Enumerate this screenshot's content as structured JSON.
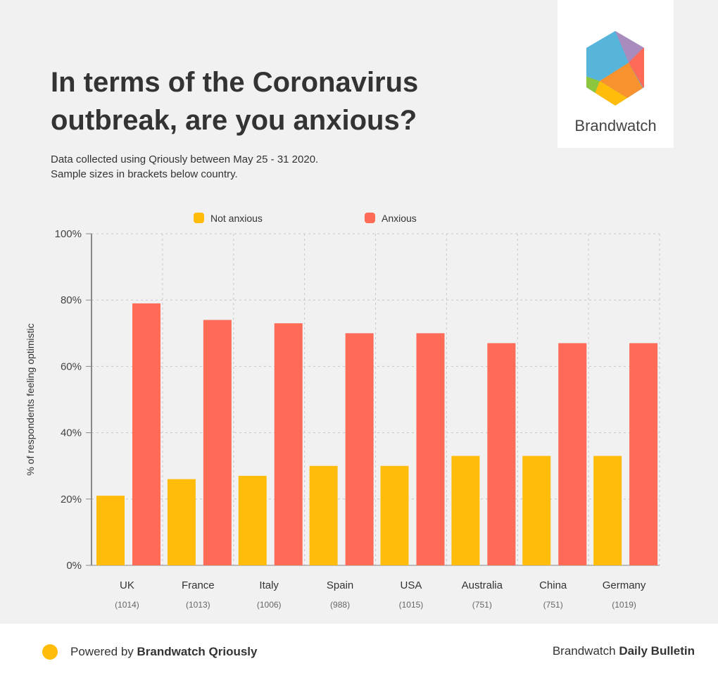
{
  "header": {
    "title_line1": "In terms of the Coronavirus",
    "title_line2": "outbreak, are you anxious?",
    "subtitle_line1": "Data collected using Qriously between May 25 - 31 2020.",
    "subtitle_line2": "Sample sizes in brackets below country.",
    "logo_text": "Brandwatch"
  },
  "footer": {
    "powered_prefix": "Powered by ",
    "powered_brand": "Brandwatch Qriously",
    "bulletin_prefix": "Brandwatch ",
    "bulletin_bold": "Daily Bulletin",
    "accent": "#ffbc0a"
  },
  "chart_data": {
    "type": "bar",
    "title": "In terms of the Coronavirus outbreak, are you anxious?",
    "categories": [
      "UK",
      "France",
      "Italy",
      "Spain",
      "USA",
      "Australia",
      "China",
      "Germany"
    ],
    "sample_sizes": [
      "(1014)",
      "(1013)",
      "(1006)",
      "(988)",
      "(1015)",
      "(751)",
      "(751)",
      "(1019)"
    ],
    "series": [
      {
        "name": "Not anxious",
        "color": "#ffbc0a",
        "values": [
          21,
          26,
          27,
          30,
          30,
          33,
          33,
          33
        ]
      },
      {
        "name": "Anxious",
        "color": "#ff6b57",
        "values": [
          79,
          74,
          73,
          70,
          70,
          67,
          67,
          67
        ]
      }
    ],
    "ylabel": "% of respondents feeling optimistic",
    "ylim": [
      0,
      100
    ],
    "yticks": [
      "0%",
      "20%",
      "40%",
      "60%",
      "80%",
      "100%"
    ],
    "grid": true,
    "legend": "top"
  }
}
